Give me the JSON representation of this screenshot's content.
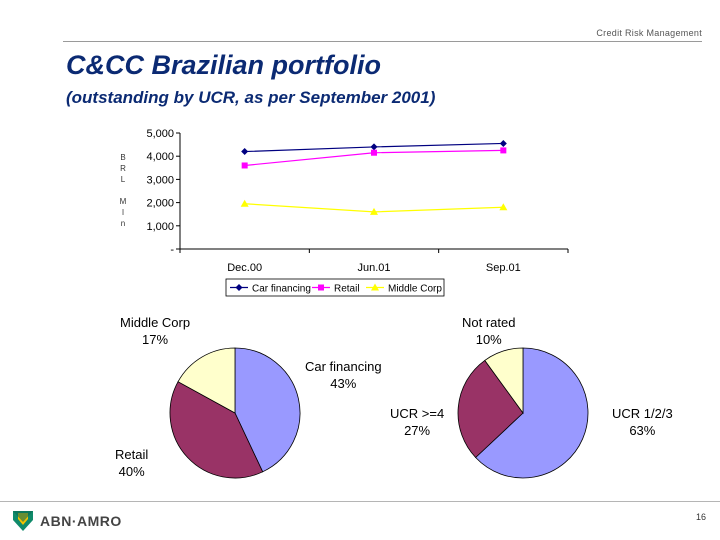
{
  "header": {
    "section_label": "Credit Risk Management"
  },
  "slide": {
    "title": "C&CC Brazilian portfolio",
    "subtitle": "(outstanding by UCR, as per September 2001)",
    "ylabel_stacked": [
      "B",
      "R",
      "L",
      "",
      "M",
      "l",
      "n"
    ]
  },
  "footer": {
    "brand": "ABN·AMRO",
    "page_number": "16"
  },
  "colors": {
    "title": "#0b2a73",
    "car_financing": "#000080",
    "retail": "#ff00ff",
    "middle_corp": "#ffff00",
    "pie_blue": "#9999ff",
    "pie_maroon": "#993366",
    "pie_cream": "#ffffcc"
  },
  "chart_data": [
    {
      "type": "line",
      "title": "",
      "xlabel": "",
      "ylabel": "BRL Mln",
      "categories": [
        "Dec.00",
        "Jun.01",
        "Sep.01"
      ],
      "ylim": [
        0,
        5000
      ],
      "yticks": [
        "-",
        "1,000",
        "2,000",
        "3,000",
        "4,000",
        "5,000"
      ],
      "grid": false,
      "legend_position": "bottom",
      "series": [
        {
          "name": "Car financing",
          "values": [
            4200,
            4400,
            4550
          ],
          "color": "#000080",
          "marker": "diamond"
        },
        {
          "name": "Retail",
          "values": [
            3600,
            4150,
            4250
          ],
          "color": "#ff00ff",
          "marker": "square"
        },
        {
          "name": "Middle Corp",
          "values": [
            1950,
            1600,
            1800
          ],
          "color": "#ffff00",
          "marker": "triangle"
        }
      ]
    },
    {
      "type": "pie",
      "slices": [
        {
          "label": "Car financing",
          "percent_label": "43%",
          "value": 43,
          "color": "#9999ff"
        },
        {
          "label": "Retail",
          "percent_label": "40%",
          "value": 40,
          "color": "#993366"
        },
        {
          "label": "Middle Corp",
          "percent_label": "17%",
          "value": 17,
          "color": "#ffffcc"
        }
      ]
    },
    {
      "type": "pie",
      "slices": [
        {
          "label": "UCR 1/2/3",
          "percent_label": "63%",
          "value": 63,
          "color": "#9999ff"
        },
        {
          "label": "UCR >=4",
          "percent_label": "27%",
          "value": 27,
          "color": "#993366"
        },
        {
          "label": "Not rated",
          "percent_label": "10%",
          "value": 10,
          "color": "#ffffcc"
        }
      ]
    }
  ]
}
